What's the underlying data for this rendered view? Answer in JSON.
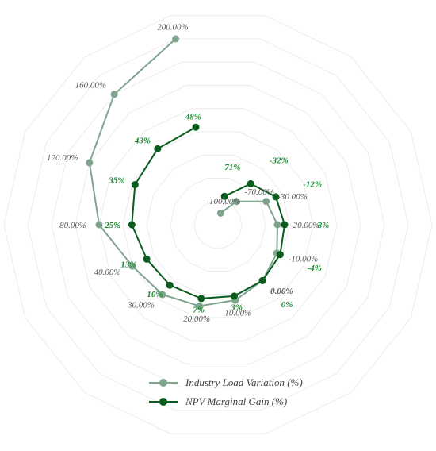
{
  "chart_data": {
    "type": "radar",
    "categories": [
      "-100.00%",
      "-70.00%",
      "-30.00%",
      "-20.00%",
      "-10.00%",
      "0.00%",
      "10.00%",
      "20.00%",
      "30.00%",
      "40.00%",
      "80.00%",
      "120.00%",
      "160.00%",
      "200.00%"
    ],
    "series": [
      {
        "name": "Industry Load Variation (%)",
        "color": "#7fa58e",
        "values": [
          -100,
          -70,
          -30,
          -20,
          -10,
          0,
          10,
          20,
          30,
          40,
          80,
          120,
          160,
          200
        ],
        "labels": [
          "-100.00%",
          "-70.00%",
          "-30.00%",
          "-20.00%",
          "-10.00%",
          "0.00%",
          "10.00%",
          "20.00%",
          "30.00%",
          "40.00%",
          "80.00%",
          "120.00%",
          "160.00%",
          "200.00%"
        ],
        "label_color": "#595959"
      },
      {
        "name": "NPV Marginal Gain (%)",
        "color": "#0a5c1e",
        "values": [
          -71,
          -32,
          -12,
          -8,
          -4,
          0,
          3,
          7,
          10,
          13,
          25,
          35,
          43,
          48
        ],
        "labels": [
          "-71%",
          "-32%",
          "-12%",
          "-8%",
          "-4%",
          "0%",
          "3%",
          "7%",
          "10%",
          "13%",
          "25%",
          "35%",
          "43%",
          "48%"
        ],
        "label_color": "#1a8a32"
      }
    ],
    "radial_min": -120,
    "radial_max": 240,
    "rings": 9,
    "grid": true,
    "legend_position": "bottom"
  }
}
